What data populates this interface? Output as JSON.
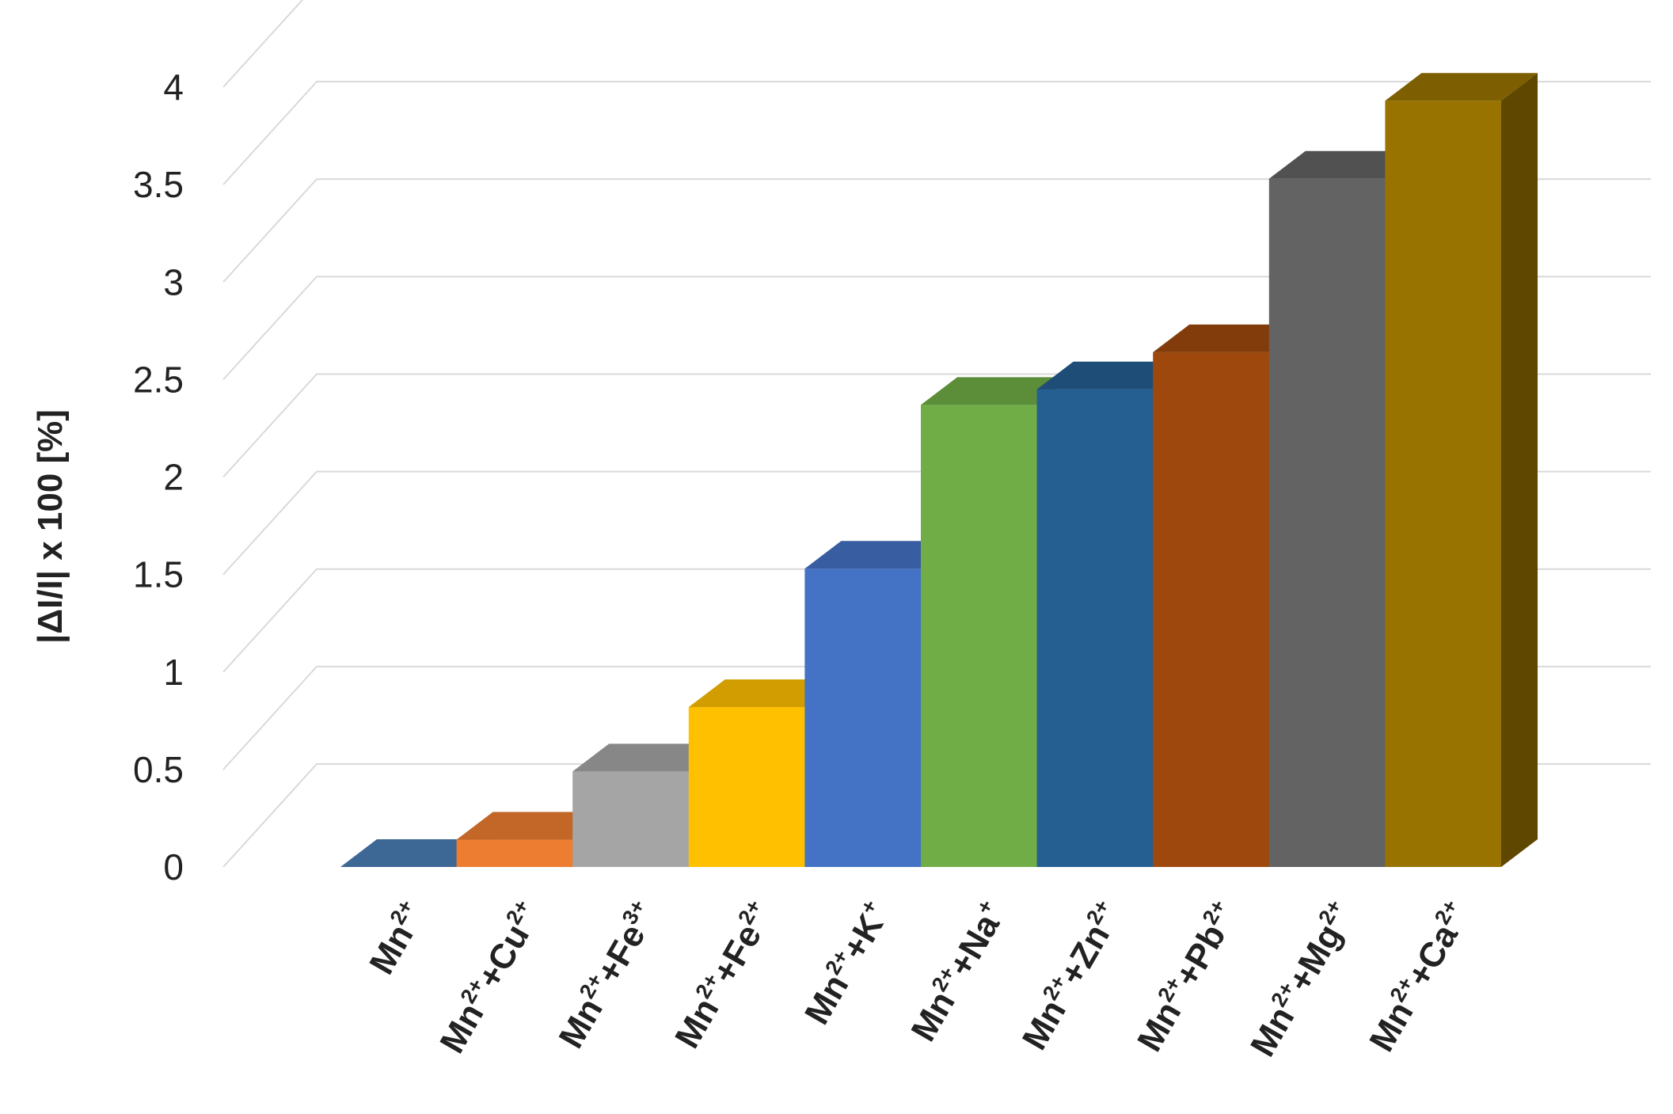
{
  "chart_data": {
    "type": "bar",
    "style": "3d-column",
    "ylabel": "|ΔI/I| x 100 [%]",
    "ylim": [
      0,
      4
    ],
    "ytick_step": 0.5,
    "yticks": [
      "0",
      "0.5",
      "1",
      "1.5",
      "2",
      "2.5",
      "3",
      "3.5",
      "4"
    ],
    "grid": true,
    "categories": [
      {
        "base": "Mn",
        "parts": [
          [
            "Mn",
            ""
          ],
          [
            "",
            "2+"
          ]
        ]
      },
      {
        "base": "Mn+Cu",
        "parts": [
          [
            "Mn",
            ""
          ],
          [
            "",
            "2+"
          ],
          [
            "+Cu",
            ""
          ],
          [
            "",
            "2+"
          ]
        ]
      },
      {
        "base": "Mn+Fe",
        "parts": [
          [
            "Mn",
            ""
          ],
          [
            "",
            "2+"
          ],
          [
            "+Fe",
            ""
          ],
          [
            "",
            "3+"
          ]
        ]
      },
      {
        "base": "Mn+Fe",
        "parts": [
          [
            "Mn",
            ""
          ],
          [
            "",
            "2+"
          ],
          [
            "+Fe",
            ""
          ],
          [
            "",
            "2+"
          ]
        ]
      },
      {
        "base": "Mn+K",
        "parts": [
          [
            "Mn",
            ""
          ],
          [
            "",
            "2+"
          ],
          [
            "+K",
            ""
          ],
          [
            "",
            "+"
          ]
        ]
      },
      {
        "base": "Mn+Na",
        "parts": [
          [
            "Mn",
            ""
          ],
          [
            "",
            "2+"
          ],
          [
            "+Na",
            ""
          ],
          [
            "",
            "+"
          ]
        ]
      },
      {
        "base": "Mn+Zn",
        "parts": [
          [
            "Mn",
            ""
          ],
          [
            "",
            "2+"
          ],
          [
            "+Zn",
            ""
          ],
          [
            "",
            "2+"
          ]
        ]
      },
      {
        "base": "Mn+Pb",
        "parts": [
          [
            "Mn",
            ""
          ],
          [
            "",
            "2+"
          ],
          [
            "+Pb",
            ""
          ],
          [
            "",
            "2+"
          ]
        ]
      },
      {
        "base": "Mn+Mg",
        "parts": [
          [
            "Mn",
            ""
          ],
          [
            "",
            "2+"
          ],
          [
            "+Mg",
            ""
          ],
          [
            "",
            "2+"
          ]
        ]
      },
      {
        "base": "Mn+Ca",
        "parts": [
          [
            "Mn",
            ""
          ],
          [
            "",
            "2+"
          ],
          [
            "+Ca",
            ""
          ],
          [
            "",
            "2+"
          ]
        ]
      }
    ],
    "category_text": [
      "Mn2+",
      "Mn2++Cu2+",
      "Mn2++Fe3+",
      "Mn2++Fe2+",
      "Mn2++K+",
      "Mn2++Na+",
      "Mn2++Zn2+",
      "Mn2++Pb2+",
      "Mn2++Mg2+",
      "Mn2++Ca2+"
    ],
    "values": [
      0.0,
      0.14,
      0.49,
      0.82,
      1.53,
      2.37,
      2.45,
      2.64,
      3.53,
      3.93
    ],
    "colors": [
      "#4a7db5",
      "#ed7d31",
      "#a5a5a5",
      "#ffc000",
      "#4472c4",
      "#70ad47",
      "#255e91",
      "#9e480e",
      "#636363",
      "#997300"
    ]
  }
}
